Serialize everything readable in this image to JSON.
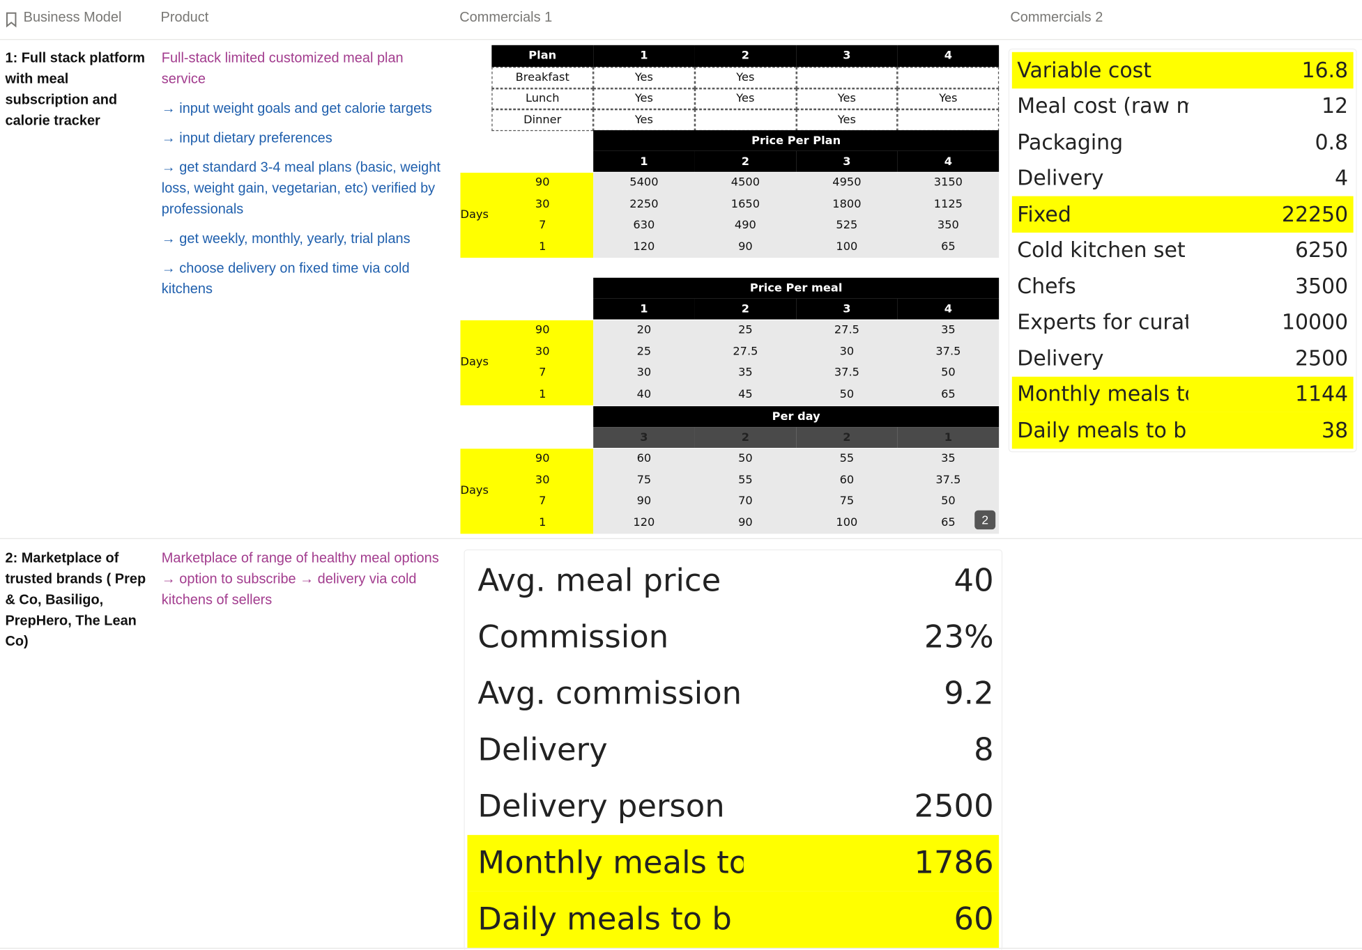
{
  "header": [
    "Business Model",
    "Product",
    "Commercials 1",
    "Commercials 2"
  ],
  "rows": [
    {
      "business_model": "1: Full stack platform with meal subscription and calorie tracker",
      "product": {
        "title": "Full-stack limited customized meal plan service",
        "bullets": [
          "→ input weight goals and get calorie targets",
          "→ input dietary preferences",
          "→ get standard 3-4 meal plans (basic, weight loss, weight gain, vegetarian, etc) verified by professionals",
          "→ get weekly, monthly, yearly, trial plans",
          "→ choose delivery on fixed time via cold kitchens"
        ]
      },
      "commercials_1": {
        "plan_table": {
          "header": [
            "Plan",
            "1",
            "2",
            "3",
            "4"
          ],
          "rows": [
            [
              "Breakfast",
              "Yes",
              "Yes",
              null,
              null
            ],
            [
              "Lunch",
              "Yes",
              "Yes",
              "Yes",
              "Yes"
            ],
            [
              "Dinner",
              "Yes",
              null,
              "Yes",
              null
            ]
          ]
        },
        "blocks": [
          {
            "title": "Price Per Plan",
            "columns": [
              "1",
              "2",
              "3",
              "4"
            ],
            "row_label": "Days",
            "days": [
              "90",
              "30",
              "7",
              "1"
            ],
            "values": [
              [
                5400,
                4500,
                4950,
                3150
              ],
              [
                2250,
                1650,
                1800,
                1125
              ],
              [
                630,
                490,
                525,
                350
              ],
              [
                120,
                90,
                100,
                65
              ]
            ]
          },
          {
            "title": "Price Per meal",
            "columns": [
              "1",
              "2",
              "3",
              "4"
            ],
            "row_label": "Days",
            "days": [
              "90",
              "30",
              "7",
              "1"
            ],
            "values": [
              [
                20,
                25,
                27.5,
                35
              ],
              [
                25,
                27.5,
                30,
                37.5
              ],
              [
                30,
                35,
                37.5,
                50
              ],
              [
                40,
                45,
                50,
                65
              ]
            ]
          },
          {
            "title": "Per day",
            "columns": [
              "3",
              "2",
              "2",
              "1"
            ],
            "row_label": "Days",
            "days": [
              "90",
              "30",
              "7",
              "1"
            ],
            "values": [
              [
                60,
                50,
                55,
                35
              ],
              [
                75,
                55,
                60,
                37.5
              ],
              [
                90,
                70,
                75,
                50
              ],
              [
                120,
                90,
                100,
                65
              ]
            ]
          }
        ],
        "image_badge": "2"
      },
      "commercials_2": [
        {
          "label": "Variable cost",
          "value": 16.8,
          "highlight": true
        },
        {
          "label": "Meal cost (raw m",
          "value": 12,
          "highlight": false
        },
        {
          "label": "Packaging",
          "value": 0.8,
          "highlight": false
        },
        {
          "label": "Delivery",
          "value": 4,
          "highlight": false
        },
        {
          "label": "Fixed",
          "value": 22250,
          "highlight": true
        },
        {
          "label": "Cold kitchen set",
          "value": 6250,
          "highlight": false
        },
        {
          "label": "Chefs",
          "value": 3500,
          "highlight": false
        },
        {
          "label": "Experts for curat",
          "value": 10000,
          "highlight": false
        },
        {
          "label": "Delivery",
          "value": 2500,
          "highlight": false
        },
        {
          "label": "Monthly meals to",
          "value": 1144,
          "highlight": true
        },
        {
          "label": "Daily meals to b",
          "value": 38,
          "highlight": true
        }
      ]
    },
    {
      "business_model": "2: Marketplace of trusted brands ( Prep & Co, Basiligo, PrepHero, The Lean Co)",
      "product": {
        "title": "Marketplace of range of healthy meal options → option to subscribe → delivery via cold kitchens of sellers"
      },
      "commercials_1": [
        {
          "label": "Avg. meal price",
          "value": 40,
          "highlight": false
        },
        {
          "label": "Commission",
          "value": "23%",
          "highlight": false
        },
        {
          "label": "Avg. commission",
          "value": 9.2,
          "highlight": false
        },
        {
          "label": "Delivery",
          "value": 8,
          "highlight": false
        },
        {
          "label": "Delivery person",
          "value": 2500,
          "highlight": false
        },
        {
          "label": "Monthly meals to",
          "value": 1786,
          "highlight": true
        },
        {
          "label": "Daily meals to b",
          "value": 60,
          "highlight": true
        }
      ]
    }
  ]
}
